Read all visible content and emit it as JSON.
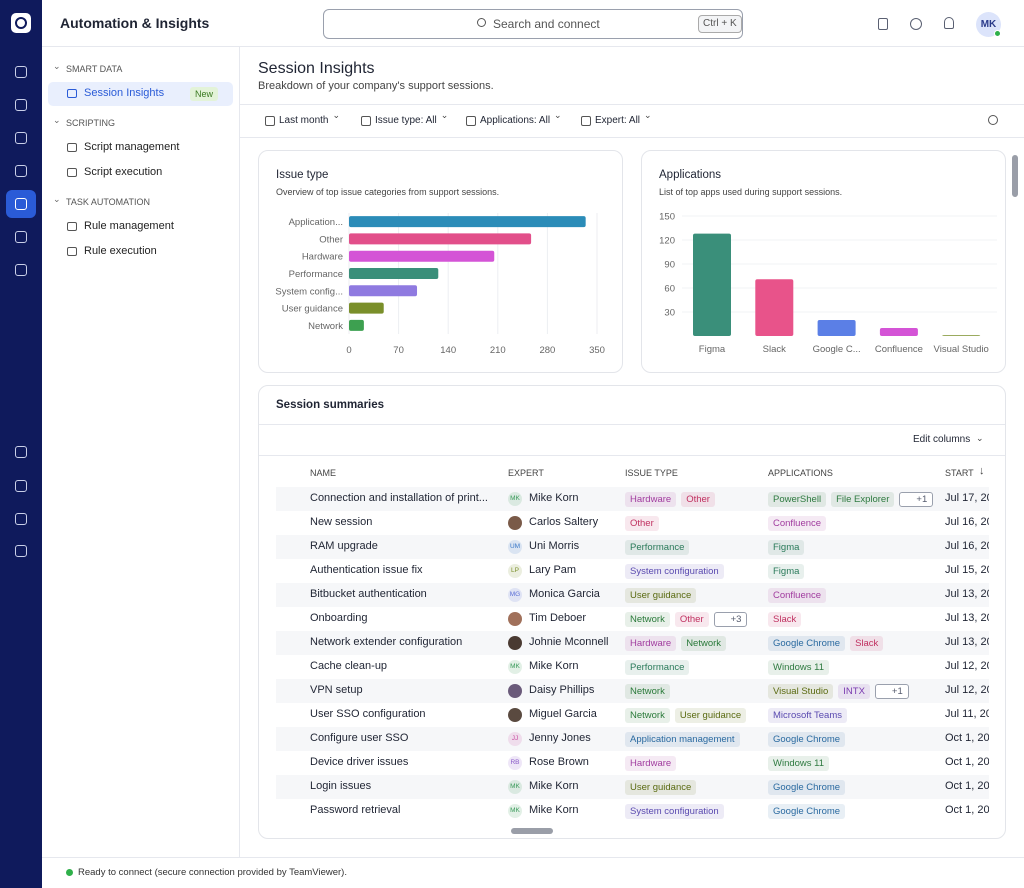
{
  "header": {
    "title": "Automation & Insights",
    "search_placeholder": "Search and connect",
    "search_shortcut": "Ctrl + K",
    "user_initials": "MK"
  },
  "sidebar": [
    {
      "title": "SMART DATA",
      "items": [
        {
          "label": "Session Insights",
          "badge": "New",
          "active": true
        }
      ]
    },
    {
      "title": "SCRIPTING",
      "items": [
        {
          "label": "Script management"
        },
        {
          "label": "Script execution"
        }
      ]
    },
    {
      "title": "TASK AUTOMATION",
      "items": [
        {
          "label": "Rule management"
        },
        {
          "label": "Rule execution"
        }
      ]
    }
  ],
  "page": {
    "title": "Session Insights",
    "subtitle": "Breakdown of your company's support sessions.",
    "filters": [
      "Last month",
      "Issue type: All",
      "Applications: All",
      "Expert: All"
    ]
  },
  "chart_data": [
    {
      "type": "hbar",
      "title": "Issue type",
      "subtitle": "Overview of top issue categories from support sessions.",
      "categories": [
        "Application...",
        "Other",
        "Hardware",
        "Performance",
        "System config...",
        "User guidance",
        "Network"
      ],
      "values": [
        334,
        257,
        205,
        126,
        96,
        49,
        21
      ],
      "colors": [
        "#2b8cb8",
        "#e24f8a",
        "#d454d6",
        "#3a8f7a",
        "#8f7ae0",
        "#7a8f2a",
        "#3da050"
      ],
      "xlim": [
        0,
        350
      ],
      "xticks": [
        0,
        70,
        140,
        210,
        280,
        350
      ],
      "grid": true
    },
    {
      "type": "bar",
      "title": "Applications",
      "subtitle": "List of top apps used during support sessions.",
      "categories": [
        "Figma",
        "Slack",
        "Google C...",
        "Confluence",
        "Visual Studio"
      ],
      "values": [
        128,
        71,
        20,
        10,
        1
      ],
      "colors": [
        "#3a8f7a",
        "#e8538a",
        "#5b7fe6",
        "#d454d6",
        "#7a8f2a"
      ],
      "ylim": [
        0,
        150
      ],
      "yticks": [
        30,
        60,
        90,
        120,
        150
      ],
      "grid": true
    }
  ],
  "table": {
    "title": "Session summaries",
    "edit_columns": "Edit columns",
    "columns": [
      "NAME",
      "EXPERT",
      "ISSUE TYPE",
      "APPLICATIONS",
      "START"
    ],
    "rows": [
      {
        "name": "Connection and installation of print...",
        "expert": {
          "initials": "MK",
          "name": "Mike Korn",
          "color": "#3a9a5a"
        },
        "issue_types": [
          {
            "label": "Hardware",
            "color": "#a13c9f"
          },
          {
            "label": "Other",
            "color": "#c03060"
          }
        ],
        "applications": [
          {
            "label": "PowerShell",
            "color": "#2e7a40"
          },
          {
            "label": "File Explorer",
            "color": "#2e7a40"
          },
          {
            "label": "+1",
            "color": "#555b6e"
          }
        ],
        "start": "Jul 17, 20"
      },
      {
        "name": "New session",
        "expert": {
          "name": "Carlos Saltery",
          "color": "#7a5a48"
        },
        "issue_types": [
          {
            "label": "Other",
            "color": "#c03060"
          }
        ],
        "applications": [
          {
            "label": "Confluence",
            "color": "#a13c9f"
          }
        ],
        "start": "Jul 16, 20"
      },
      {
        "name": "RAM upgrade",
        "expert": {
          "initials": "UM",
          "name": "Uni Morris",
          "color": "#3a78c8"
        },
        "issue_types": [
          {
            "label": "Performance",
            "color": "#2a7a5a"
          }
        ],
        "applications": [
          {
            "label": "Figma",
            "color": "#2a7a5a"
          }
        ],
        "start": "Jul 16, 20"
      },
      {
        "name": "Authentication issue fix",
        "expert": {
          "initials": "LP",
          "name": "Lary Pam",
          "color": "#7a8f2a"
        },
        "issue_types": [
          {
            "label": "System configuration",
            "color": "#5a4ab0"
          }
        ],
        "applications": [
          {
            "label": "Figma",
            "color": "#2a7a5a"
          }
        ],
        "start": "Jul 15, 20"
      },
      {
        "name": "Bitbucket authentication",
        "expert": {
          "initials": "MG",
          "name": "Monica Garcia",
          "color": "#5b6fd6"
        },
        "issue_types": [
          {
            "label": "User guidance",
            "color": "#5a6a10"
          }
        ],
        "applications": [
          {
            "label": "Confluence",
            "color": "#a13c9f"
          }
        ],
        "start": "Jul 13, 20"
      },
      {
        "name": "Onboarding",
        "expert": {
          "name": "Tim Deboer",
          "color": "#a0705a"
        },
        "issue_types": [
          {
            "label": "Network",
            "color": "#2a7a3a"
          },
          {
            "label": "Other",
            "color": "#c03060"
          },
          {
            "label": "+3",
            "color": "#555b6e"
          }
        ],
        "applications": [
          {
            "label": "Slack",
            "color": "#c03060"
          }
        ],
        "start": "Jul 13, 20"
      },
      {
        "name": "Network extender configuration",
        "expert": {
          "name": "Johnie Mconnell",
          "color": "#4a3a32"
        },
        "issue_types": [
          {
            "label": "Hardware",
            "color": "#a13c9f"
          },
          {
            "label": "Network",
            "color": "#2a7a3a"
          }
        ],
        "applications": [
          {
            "label": "Google Chrome",
            "color": "#2a6aa0"
          },
          {
            "label": "Slack",
            "color": "#c03060"
          }
        ],
        "start": "Jul 13, 20"
      },
      {
        "name": "Cache clean-up",
        "expert": {
          "initials": "MK",
          "name": "Mike Korn",
          "color": "#3a9a5a"
        },
        "issue_types": [
          {
            "label": "Performance",
            "color": "#2a7a5a"
          }
        ],
        "applications": [
          {
            "label": "Windows 11",
            "color": "#2e7a40"
          }
        ],
        "start": "Jul 12, 20"
      },
      {
        "name": "VPN setup",
        "expert": {
          "name": "Daisy Phillips",
          "color": "#6a5a7a"
        },
        "issue_types": [
          {
            "label": "Network",
            "color": "#2a7a3a"
          }
        ],
        "applications": [
          {
            "label": "Visual Studio",
            "color": "#5a6a10"
          },
          {
            "label": "INTX",
            "color": "#7a3ab0"
          },
          {
            "label": "+1",
            "color": "#555b6e"
          }
        ],
        "start": "Jul 12, 20"
      },
      {
        "name": "User SSO configuration",
        "expert": {
          "name": "Miguel Garcia",
          "color": "#5a4a40"
        },
        "issue_types": [
          {
            "label": "Network",
            "color": "#2a7a3a"
          },
          {
            "label": "User guidance",
            "color": "#5a6a10"
          }
        ],
        "applications": [
          {
            "label": "Microsoft Teams",
            "color": "#5a4ab0"
          }
        ],
        "start": "Jul 11, 20"
      },
      {
        "name": "Configure user SSO",
        "expert": {
          "initials": "JJ",
          "name": "Jenny Jones",
          "color": "#c84aa0"
        },
        "issue_types": [
          {
            "label": "Application management",
            "color": "#2a6aa0"
          }
        ],
        "applications": [
          {
            "label": "Google Chrome",
            "color": "#2a6aa0"
          }
        ],
        "start": "Oct 1, 20"
      },
      {
        "name": "Device driver issues",
        "expert": {
          "initials": "RB",
          "name": "Rose Brown",
          "color": "#8a5ac8"
        },
        "issue_types": [
          {
            "label": "Hardware",
            "color": "#a13c9f"
          }
        ],
        "applications": [
          {
            "label": "Windows 11",
            "color": "#2e7a40"
          }
        ],
        "start": "Oct 1, 20"
      },
      {
        "name": "Login issues",
        "expert": {
          "initials": "MK",
          "name": "Mike Korn",
          "color": "#3a9a5a"
        },
        "issue_types": [
          {
            "label": "User guidance",
            "color": "#5a6a10"
          }
        ],
        "applications": [
          {
            "label": "Google Chrome",
            "color": "#2a6aa0"
          }
        ],
        "start": "Oct 1, 20"
      },
      {
        "name": "Password retrieval",
        "expert": {
          "initials": "MK",
          "name": "Mike Korn",
          "color": "#3a9a5a"
        },
        "issue_types": [
          {
            "label": "System configuration",
            "color": "#5a4ab0"
          }
        ],
        "applications": [
          {
            "label": "Google Chrome",
            "color": "#2a6aa0"
          }
        ],
        "start": "Oct 1, 20"
      }
    ]
  },
  "status": "Ready to connect (secure connection provided by TeamViewer)."
}
